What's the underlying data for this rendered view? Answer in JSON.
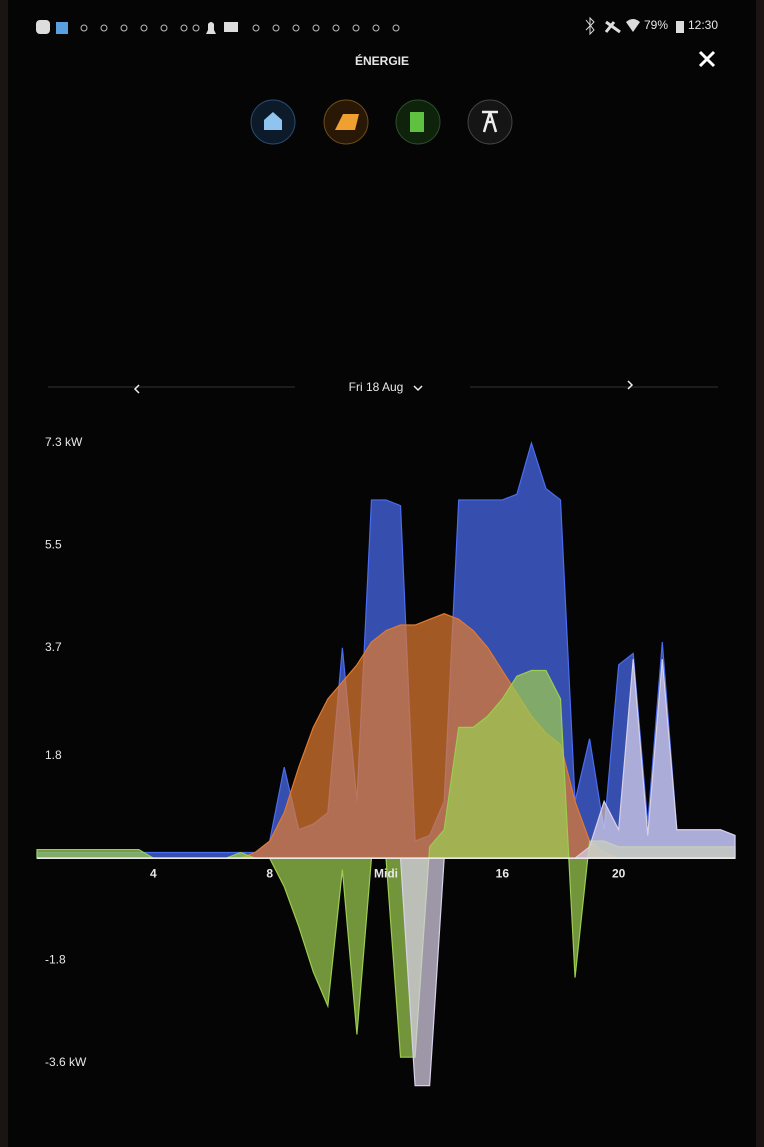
{
  "status_bar": {
    "battery": "79%",
    "time": "12:30"
  },
  "header": {
    "title": "ÉNERGIE"
  },
  "date_nav": {
    "date": "Fri 18 Aug"
  },
  "chart_data": {
    "type": "area",
    "x": [
      0,
      0.5,
      1,
      1.5,
      2,
      2.5,
      3,
      3.5,
      4,
      4.5,
      5,
      5.5,
      6,
      6.5,
      7,
      7.5,
      8,
      8.5,
      9,
      9.5,
      10,
      10.5,
      11,
      11.5,
      12,
      12.5,
      13,
      13.5,
      14,
      14.5,
      15,
      15.5,
      16,
      16.5,
      17,
      17.5,
      18,
      18.5,
      19,
      19.5,
      20,
      20.5,
      21,
      21.5,
      22,
      22.5,
      23,
      23.5,
      24
    ],
    "series": [
      {
        "color": "#4a6cf0",
        "values": [
          0.1,
          0.1,
          0.1,
          0.1,
          0.1,
          0.1,
          0.1,
          0.1,
          0.1,
          0.1,
          0.1,
          0.1,
          0.1,
          0.1,
          0.1,
          0.1,
          0.3,
          1.6,
          0.5,
          0.6,
          0.8,
          3.7,
          1.0,
          6.3,
          6.3,
          6.2,
          0.3,
          0.4,
          1.0,
          6.3,
          6.3,
          6.3,
          6.3,
          6.4,
          7.3,
          6.5,
          6.3,
          1.0,
          2.1,
          0.5,
          3.4,
          3.6,
          0.6,
          3.8,
          0.5,
          0.5,
          0.5,
          0.5,
          0.4
        ]
      },
      {
        "color": "#e07a30",
        "values": [
          0,
          0,
          0,
          0,
          0,
          0,
          0,
          0,
          0,
          0,
          0,
          0,
          0,
          0,
          0,
          0.1,
          0.3,
          0.8,
          1.6,
          2.3,
          2.8,
          3.1,
          3.4,
          3.8,
          4.0,
          4.1,
          4.1,
          4.2,
          4.3,
          4.2,
          4.0,
          3.7,
          3.3,
          2.9,
          2.5,
          2.2,
          2.0,
          1.0,
          0.3,
          0.1,
          0,
          0,
          0,
          0,
          0,
          0,
          0,
          0,
          0
        ]
      },
      {
        "color": "#9ccc50",
        "values": [
          0.15,
          0.15,
          0.15,
          0.15,
          0.15,
          0.15,
          0.15,
          0.15,
          0,
          0,
          0,
          0,
          0,
          0,
          0.1,
          0,
          0,
          -0.5,
          -1.2,
          -2.0,
          -2.6,
          -0.2,
          -3.1,
          0,
          0,
          -3.5,
          -3.5,
          0.2,
          0.5,
          2.3,
          2.3,
          2.5,
          2.8,
          3.2,
          3.3,
          3.3,
          2.8,
          -2.1,
          0.3,
          0.3,
          0.2,
          0.2,
          0.2,
          0.2,
          0.2,
          0.2,
          0.2,
          0.2,
          0.2
        ]
      },
      {
        "color": "#d8d0e8",
        "values": [
          0,
          0,
          0,
          0,
          0,
          0,
          0,
          0,
          0,
          0,
          0,
          0,
          0,
          0,
          0,
          0,
          0,
          0,
          0,
          0,
          0,
          0,
          0,
          0,
          0,
          0,
          -4.0,
          -4.0,
          0,
          0,
          0,
          0,
          0,
          0,
          0,
          0,
          0,
          0,
          0.2,
          1.0,
          0.5,
          3.5,
          0.4,
          3.5,
          0.5,
          0.5,
          0.5,
          0.5,
          0.4
        ]
      }
    ],
    "xlim": [
      0,
      24
    ],
    "xticks": [
      4,
      8,
      {
        "value": 12,
        "label": "Midi"
      },
      16,
      20
    ],
    "ylim": [
      -4.2,
      7.6
    ],
    "yticks": [
      {
        "value": 7.3,
        "label": "7.3 kW"
      },
      5.5,
      3.7,
      1.8,
      -1.8,
      {
        "value": -3.6,
        "label": "-3.6 kW"
      }
    ],
    "grid": false
  }
}
